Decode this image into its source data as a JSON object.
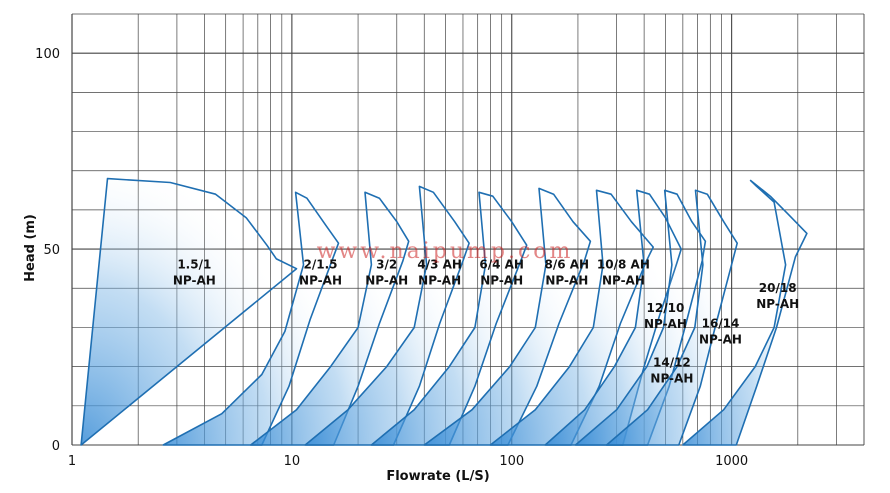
{
  "chart_data": {
    "type": "line",
    "xlabel": "Flowrate (L/S)",
    "ylabel": "Head (m)",
    "xscale": "log",
    "xlim": [
      1,
      4000
    ],
    "ylim": [
      0,
      110
    ],
    "xticks": [
      "1",
      "10",
      "100",
      "1000"
    ],
    "yticks": [
      "0",
      "50",
      "100"
    ],
    "grid": true,
    "colors": {
      "curve": "#1f6fb2",
      "fill": "#2f87d4",
      "grid": "#444444"
    },
    "watermark": "www.naipump.com",
    "series": [
      {
        "name": "1.5/1 NP-AH",
        "label": [
          "1.5/1",
          "NP-AH"
        ],
        "label_at": [
          3.6,
          45
        ],
        "points": [
          [
            1.1,
            0
          ],
          [
            1.45,
            68
          ],
          [
            2.8,
            67
          ],
          [
            4.5,
            64
          ],
          [
            6.2,
            58
          ],
          [
            7.7,
            51
          ],
          [
            8.5,
            47.5
          ],
          [
            10.5,
            45
          ]
        ]
      },
      {
        "name": "2/1.5 NP-AH",
        "label": [
          "2/1.5",
          "NP-AH"
        ],
        "label_at": [
          13.5,
          45
        ],
        "points": [
          [
            2.6,
            0
          ],
          [
            4.8,
            8
          ],
          [
            7.3,
            18
          ],
          [
            9.3,
            29
          ],
          [
            11.3,
            46
          ],
          [
            10.4,
            64.5
          ],
          [
            11.7,
            63
          ],
          [
            14.3,
            56
          ],
          [
            16.3,
            51.5
          ],
          [
            15.2,
            47
          ],
          [
            12.1,
            32
          ],
          [
            9.7,
            15
          ],
          [
            7.3,
            0
          ]
        ]
      },
      {
        "name": "3/2 NP-AH",
        "label": [
          "3/2",
          "NP-AH"
        ],
        "label_at": [
          27,
          45
        ],
        "points": [
          [
            6.5,
            0
          ],
          [
            10.5,
            9
          ],
          [
            15,
            20
          ],
          [
            20,
            30
          ],
          [
            23,
            46
          ],
          [
            21.5,
            64.5
          ],
          [
            25,
            63
          ],
          [
            30,
            57
          ],
          [
            34,
            52
          ],
          [
            32,
            47
          ],
          [
            25,
            31
          ],
          [
            20,
            15
          ],
          [
            15.5,
            0
          ]
        ]
      },
      {
        "name": "4/3 AH NP-AH",
        "label": [
          "4/3 AH",
          "NP-AH"
        ],
        "label_at": [
          47,
          45
        ],
        "points": [
          [
            11.5,
            0
          ],
          [
            18,
            9
          ],
          [
            27,
            20
          ],
          [
            36,
            30
          ],
          [
            41,
            46
          ],
          [
            38,
            66
          ],
          [
            44,
            64.5
          ],
          [
            55,
            57
          ],
          [
            64,
            51.5
          ],
          [
            60,
            47
          ],
          [
            47,
            31
          ],
          [
            38,
            15
          ],
          [
            29,
            0
          ]
        ]
      },
      {
        "name": "6/4 AH NP-AH",
        "label": [
          "6/4 AH",
          "NP-AH"
        ],
        "label_at": [
          90,
          45
        ],
        "points": [
          [
            23,
            0
          ],
          [
            36,
            9
          ],
          [
            52,
            20
          ],
          [
            68,
            30
          ],
          [
            76,
            46
          ],
          [
            71,
            64.5
          ],
          [
            82,
            63.5
          ],
          [
            100,
            57
          ],
          [
            117,
            51
          ],
          [
            110,
            47
          ],
          [
            85,
            31
          ],
          [
            68,
            15
          ],
          [
            52,
            0
          ]
        ]
      },
      {
        "name": "8/6 AH NP-AH",
        "label": [
          "8/6 AH",
          "NP-AH"
        ],
        "label_at": [
          178,
          45
        ],
        "points": [
          [
            40,
            0
          ],
          [
            66,
            9
          ],
          [
            98,
            20
          ],
          [
            128,
            30
          ],
          [
            143,
            46
          ],
          [
            133,
            65.5
          ],
          [
            155,
            64
          ],
          [
            190,
            57
          ],
          [
            228,
            52
          ],
          [
            214,
            47
          ],
          [
            164,
            31
          ],
          [
            130,
            15
          ],
          [
            96,
            0
          ]
        ]
      },
      {
        "name": "10/8 AH NP-AH",
        "label": [
          "10/8 AH",
          "NP-AH"
        ],
        "label_at": [
          322,
          45
        ],
        "points": [
          [
            80,
            0
          ],
          [
            128,
            9
          ],
          [
            183,
            20
          ],
          [
            235,
            30
          ],
          [
            260,
            46
          ],
          [
            243,
            65
          ],
          [
            283,
            64
          ],
          [
            350,
            57
          ],
          [
            440,
            50.5
          ],
          [
            410,
            47
          ],
          [
            312,
            31
          ],
          [
            250,
            15
          ],
          [
            186,
            0
          ]
        ]
      },
      {
        "name": "12/10 NP-AH",
        "label": [
          "12/10",
          "NP-AH"
        ],
        "label_at": [
          500,
          34
        ],
        "points": [
          [
            142,
            0
          ],
          [
            215,
            9
          ],
          [
            293,
            20
          ],
          [
            365,
            30
          ],
          [
            400,
            46
          ],
          [
            370,
            65
          ],
          [
            423,
            64
          ],
          [
            500,
            58
          ],
          [
            590,
            50
          ],
          [
            560,
            46
          ],
          [
            470,
            33
          ],
          [
            400,
            20
          ],
          [
            320,
            0
          ]
        ]
      },
      {
        "name": "14/12 NP-AH",
        "label": [
          "14/12",
          "NP-AH"
        ],
        "label_at": [
          535,
          20
        ],
        "points": [
          [
            195,
            0
          ],
          [
            300,
            9
          ],
          [
            412,
            20
          ],
          [
            490,
            30
          ],
          [
            535,
            46
          ],
          [
            496,
            65
          ],
          [
            565,
            64
          ],
          [
            660,
            57
          ],
          [
            760,
            52
          ],
          [
            735,
            47
          ],
          [
            620,
            31
          ],
          [
            520,
            15
          ],
          [
            415,
            0
          ]
        ]
      },
      {
        "name": "16/14 NP-AH",
        "label": [
          "16/14",
          "NP-AH"
        ],
        "label_at": [
          890,
          30
        ],
        "points": [
          [
            270,
            0
          ],
          [
            415,
            9
          ],
          [
            565,
            20
          ],
          [
            680,
            30
          ],
          [
            740,
            46
          ],
          [
            685,
            65
          ],
          [
            775,
            64
          ],
          [
            920,
            57
          ],
          [
            1060,
            51.5
          ],
          [
            1010,
            47
          ],
          [
            850,
            31
          ],
          [
            720,
            15
          ],
          [
            575,
            0
          ]
        ]
      },
      {
        "name": "20/18 NP-AH",
        "label": [
          "20/18",
          "NP-AH"
        ],
        "label_at": [
          1620,
          39
        ],
        "points": [
          [
            600,
            0
          ],
          [
            920,
            9
          ],
          [
            1280,
            20
          ],
          [
            1560,
            30
          ],
          [
            1760,
            46
          ],
          [
            1560,
            62
          ],
          [
            1300,
            66
          ],
          [
            1220,
            67.5
          ],
          [
            1500,
            63.5
          ],
          [
            1800,
            59
          ],
          [
            2200,
            54
          ],
          [
            1950,
            48
          ],
          [
            1600,
            30
          ],
          [
            1300,
            15
          ],
          [
            1050,
            0
          ]
        ]
      }
    ]
  }
}
